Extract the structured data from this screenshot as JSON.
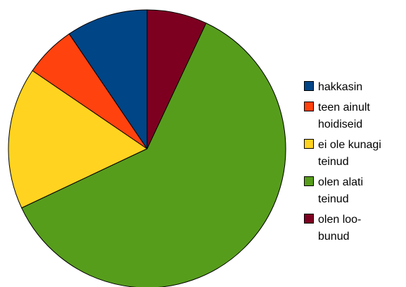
{
  "chart_data": {
    "type": "pie",
    "title": "",
    "slices": [
      {
        "label": "hakkasin",
        "value": 9.5,
        "color": "#004586"
      },
      {
        "label": "teen ainult\nhoidiseid",
        "value": 6.0,
        "color": "#ff420e"
      },
      {
        "label": "ei ole kunagi\nteinud",
        "value": 16.5,
        "color": "#ffd320"
      },
      {
        "label": "olen alati\nteinud",
        "value": 61.0,
        "color": "#579d1c"
      },
      {
        "label": "olen loo-\nbunud",
        "value": 7.0,
        "color": "#7e0021"
      }
    ],
    "legend_position": "right"
  }
}
